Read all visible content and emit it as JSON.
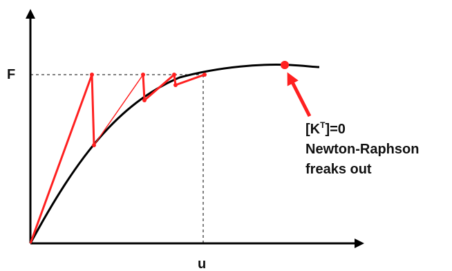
{
  "labels": {
    "force_axis": "F",
    "displacement_axis": "u",
    "annotation_line1": "[K",
    "annotation_superscript": "T",
    "annotation_line1_end": "]=0",
    "annotation_line2": "Newton-Raphson",
    "annotation_line3": "freaks out"
  },
  "colors": {
    "axis": "#000000",
    "curve": "#000000",
    "iteration": "#ff2020",
    "dashed": "#000000"
  }
}
